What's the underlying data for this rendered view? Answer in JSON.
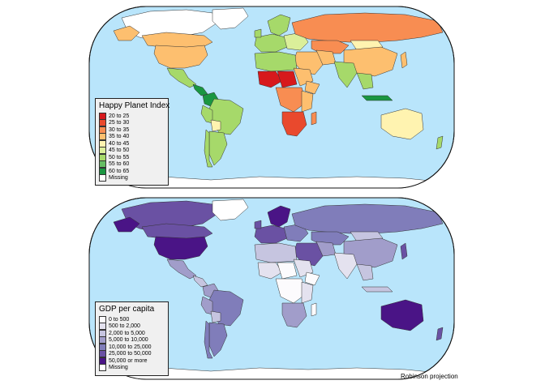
{
  "ocean_color": "#b9e5fb",
  "maps": [
    {
      "id": "hpi",
      "legend": {
        "title": "Happy Planet Index",
        "items": [
          {
            "label": "20 to 25",
            "color": "#d7191c"
          },
          {
            "label": "25 to 30",
            "color": "#e9492d"
          },
          {
            "label": "30 to 35",
            "color": "#f88d52"
          },
          {
            "label": "35 to 40",
            "color": "#fdbf6f"
          },
          {
            "label": "40 to 45",
            "color": "#fff3b0"
          },
          {
            "label": "45 to 50",
            "color": "#dbef9a"
          },
          {
            "label": "50 to 55",
            "color": "#a6d96a"
          },
          {
            "label": "55 to 60",
            "color": "#66bd63"
          },
          {
            "label": "60 to 65",
            "color": "#1a9641"
          },
          {
            "label": "Missing",
            "color": "#ffffff"
          }
        ]
      }
    },
    {
      "id": "gdp",
      "legend": {
        "title": "GDP per capita",
        "items": [
          {
            "label": "0 to 500",
            "color": "#fcfbfd"
          },
          {
            "label": "500 to 2,000",
            "color": "#e4e2ef"
          },
          {
            "label": "2,000 to 5,000",
            "color": "#c6c5e0"
          },
          {
            "label": "5,000 to 10,000",
            "color": "#a19dca"
          },
          {
            "label": "10,000 to 25,000",
            "color": "#807dba"
          },
          {
            "label": "25,000 to 50,000",
            "color": "#6a51a3"
          },
          {
            "label": "50,000 or more",
            "color": "#4a1486"
          },
          {
            "label": "Missing",
            "color": "#ffffff"
          }
        ]
      }
    }
  ],
  "credit": "Robinson projection"
}
